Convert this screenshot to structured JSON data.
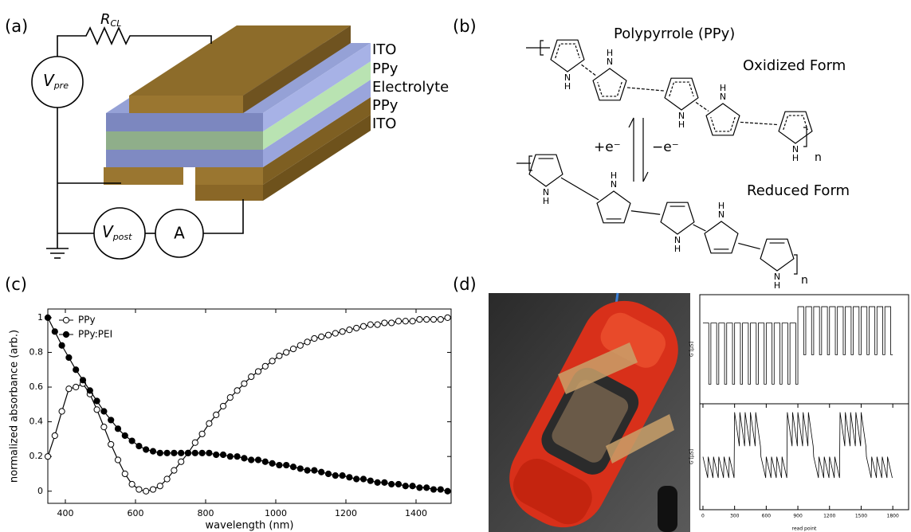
{
  "panel_a": {
    "label": "(a)",
    "resistor": {
      "symbol": "R",
      "subscript": "CL"
    },
    "source": {
      "symbol": "V",
      "subscript": "pre"
    },
    "meter": {
      "symbol": "V",
      "subscript": "post"
    },
    "ammeter": "A",
    "layers": [
      "ITO",
      "PPy",
      "Electrolyte",
      "PPy",
      "ITO"
    ]
  },
  "panel_b": {
    "label": "(b)",
    "title": "Polypyrrole (PPy)",
    "oxidized": "Oxidized Form",
    "reduced": "Reduced Form",
    "reduction": "+e⁻",
    "oxidation": "−e⁻",
    "nitrogen": "N",
    "hydrogen": "H",
    "repeat": "n"
  },
  "panel_c_label": "(c)",
  "panel_d_label": "(d)",
  "chart_data": [
    {
      "type": "line",
      "xlabel": "wavelength (nm)",
      "ylabel": "normalized absorbance (arb.)",
      "legend": "upper left",
      "xlim": [
        350,
        1500
      ],
      "ylim": [
        -0.07,
        1.05
      ],
      "xticks": [
        400,
        600,
        800,
        1000,
        1200,
        1400
      ],
      "yticks": [
        0,
        0.2,
        0.4,
        0.6,
        0.8,
        1
      ],
      "x": [
        350,
        370,
        390,
        410,
        430,
        450,
        470,
        490,
        510,
        530,
        550,
        570,
        590,
        610,
        630,
        650,
        670,
        690,
        710,
        730,
        750,
        770,
        790,
        810,
        830,
        850,
        870,
        890,
        910,
        930,
        950,
        970,
        990,
        1010,
        1030,
        1050,
        1070,
        1090,
        1110,
        1130,
        1150,
        1170,
        1190,
        1210,
        1230,
        1250,
        1270,
        1290,
        1310,
        1330,
        1350,
        1370,
        1390,
        1410,
        1430,
        1450,
        1470,
        1490
      ],
      "series": [
        {
          "name": "PPy",
          "color": "#000000",
          "marker_fill": "#ffffff",
          "values": [
            0.2,
            0.32,
            0.46,
            0.59,
            0.6,
            0.62,
            0.56,
            0.47,
            0.37,
            0.27,
            0.18,
            0.1,
            0.04,
            0.01,
            0.0,
            0.01,
            0.03,
            0.07,
            0.12,
            0.17,
            0.22,
            0.28,
            0.33,
            0.39,
            0.44,
            0.49,
            0.54,
            0.58,
            0.62,
            0.66,
            0.69,
            0.72,
            0.75,
            0.78,
            0.8,
            0.82,
            0.84,
            0.86,
            0.88,
            0.89,
            0.9,
            0.91,
            0.92,
            0.93,
            0.94,
            0.95,
            0.96,
            0.96,
            0.97,
            0.97,
            0.98,
            0.98,
            0.98,
            0.99,
            0.99,
            0.99,
            0.99,
            1.0
          ]
        },
        {
          "name": "PPy:PEI",
          "color": "#000000",
          "marker_fill": "#000000",
          "values": [
            1.0,
            0.92,
            0.84,
            0.77,
            0.7,
            0.64,
            0.58,
            0.52,
            0.46,
            0.41,
            0.36,
            0.32,
            0.29,
            0.26,
            0.24,
            0.23,
            0.22,
            0.22,
            0.22,
            0.22,
            0.22,
            0.22,
            0.22,
            0.22,
            0.21,
            0.21,
            0.2,
            0.2,
            0.19,
            0.18,
            0.18,
            0.17,
            0.16,
            0.15,
            0.15,
            0.14,
            0.13,
            0.12,
            0.12,
            0.11,
            0.1,
            0.09,
            0.09,
            0.08,
            0.07,
            0.07,
            0.06,
            0.05,
            0.05,
            0.04,
            0.04,
            0.03,
            0.03,
            0.02,
            0.02,
            0.01,
            0.01,
            0.0
          ]
        }
      ]
    },
    {
      "type": "line",
      "ylabel": "G [µS]",
      "xlim": [
        -30,
        1950
      ],
      "ylim": [
        0,
        1
      ],
      "x": [
        0,
        55,
        55,
        75,
        75,
        130,
        130,
        150,
        150,
        205,
        205,
        225,
        225,
        280,
        280,
        300,
        300,
        355,
        355,
        375,
        375,
        430,
        430,
        450,
        450,
        505,
        505,
        525,
        525,
        580,
        580,
        600,
        600,
        655,
        655,
        675,
        675,
        730,
        730,
        750,
        750,
        805,
        805,
        825,
        825,
        880,
        880,
        900,
        900,
        955,
        955,
        975,
        975,
        1030,
        1030,
        1050,
        1050,
        1105,
        1105,
        1125,
        1125,
        1180,
        1180,
        1200,
        1200,
        1255,
        1255,
        1275,
        1275,
        1330,
        1330,
        1350,
        1350,
        1405,
        1405,
        1425,
        1425,
        1480,
        1480,
        1500,
        1500,
        1555,
        1555,
        1575,
        1575,
        1630,
        1630,
        1650,
        1650,
        1705,
        1705,
        1725,
        1725,
        1780,
        1780,
        1800
      ],
      "series": [
        {
          "color": "#000000",
          "values": [
            0.74,
            0.74,
            0.18,
            0.18,
            0.74,
            0.74,
            0.18,
            0.18,
            0.74,
            0.74,
            0.18,
            0.18,
            0.74,
            0.74,
            0.18,
            0.18,
            0.74,
            0.74,
            0.18,
            0.18,
            0.74,
            0.74,
            0.18,
            0.18,
            0.74,
            0.74,
            0.18,
            0.18,
            0.74,
            0.74,
            0.18,
            0.18,
            0.74,
            0.74,
            0.18,
            0.18,
            0.74,
            0.74,
            0.18,
            0.18,
            0.74,
            0.74,
            0.18,
            0.18,
            0.74,
            0.74,
            0.18,
            0.18,
            0.89,
            0.89,
            0.45,
            0.45,
            0.89,
            0.89,
            0.45,
            0.45,
            0.89,
            0.89,
            0.45,
            0.45,
            0.89,
            0.89,
            0.45,
            0.45,
            0.89,
            0.89,
            0.45,
            0.45,
            0.89,
            0.89,
            0.45,
            0.45,
            0.89,
            0.89,
            0.45,
            0.45,
            0.89,
            0.89,
            0.45,
            0.45,
            0.89,
            0.89,
            0.45,
            0.45,
            0.89,
            0.89,
            0.45,
            0.45,
            0.89,
            0.89,
            0.45,
            0.45,
            0.89,
            0.89,
            0.45,
            0.45
          ]
        }
      ]
    },
    {
      "type": "line",
      "ylabel": "G [µS]",
      "xlabel": "read point",
      "xlim": [
        -30,
        1950
      ],
      "ylim": [
        0,
        1
      ],
      "xticks": [
        0,
        300,
        600,
        900,
        1200,
        1500,
        1800
      ],
      "x": [
        0,
        45,
        50,
        95,
        100,
        145,
        150,
        195,
        200,
        245,
        250,
        295,
        300,
        345,
        350,
        395,
        400,
        445,
        450,
        495,
        500,
        545,
        550,
        595,
        600,
        645,
        650,
        695,
        700,
        745,
        750,
        795,
        800,
        845,
        850,
        895,
        900,
        945,
        950,
        995,
        1000,
        1045,
        1050,
        1095,
        1100,
        1145,
        1150,
        1195,
        1200,
        1245,
        1250,
        1295,
        1300,
        1345,
        1350,
        1395,
        1400,
        1445,
        1450,
        1495,
        1500,
        1545,
        1550,
        1595,
        1600,
        1645,
        1650,
        1695,
        1700,
        1745,
        1750,
        1795
      ],
      "series": [
        {
          "color": "#000000",
          "values": [
            0.5,
            0.3,
            0.5,
            0.3,
            0.5,
            0.3,
            0.5,
            0.3,
            0.5,
            0.3,
            0.5,
            0.3,
            0.92,
            0.6,
            0.92,
            0.6,
            0.92,
            0.6,
            0.92,
            0.6,
            0.92,
            0.6,
            0.5,
            0.3,
            0.5,
            0.3,
            0.5,
            0.3,
            0.5,
            0.3,
            0.5,
            0.3,
            0.92,
            0.6,
            0.92,
            0.6,
            0.92,
            0.6,
            0.92,
            0.6,
            0.92,
            0.6,
            0.5,
            0.3,
            0.5,
            0.3,
            0.5,
            0.3,
            0.5,
            0.3,
            0.5,
            0.3,
            0.92,
            0.6,
            0.92,
            0.6,
            0.92,
            0.6,
            0.92,
            0.6,
            0.92,
            0.6,
            0.5,
            0.3,
            0.5,
            0.3,
            0.5,
            0.3,
            0.5,
            0.3,
            0.5,
            0.3
          ]
        }
      ]
    }
  ]
}
